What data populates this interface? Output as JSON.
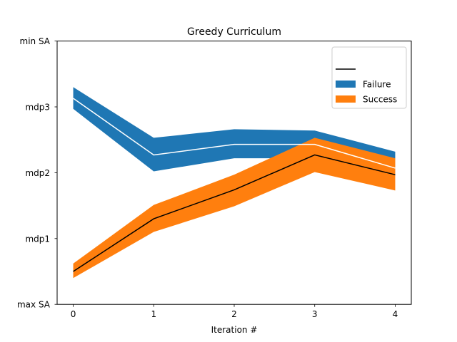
{
  "chart_data": {
    "type": "line",
    "title": "Greedy Curriculum",
    "xlabel": "Iteration #",
    "ylabel": "",
    "x": [
      0,
      1,
      2,
      3,
      4
    ],
    "xlim": [
      -0.2,
      4.2
    ],
    "ylim": [
      0,
      4
    ],
    "y_ticks": [
      {
        "value": 0,
        "label": "max SA"
      },
      {
        "value": 1,
        "label": "mdp1"
      },
      {
        "value": 2,
        "label": "mdp2"
      },
      {
        "value": 3,
        "label": "mdp3"
      },
      {
        "value": 4,
        "label": "min SA"
      }
    ],
    "grid": false,
    "legend_position": "top-right",
    "series": [
      {
        "name": "Failure",
        "color": "#1f77b4",
        "line_color": "#ffffff",
        "mean": [
          3.13,
          2.27,
          2.43,
          2.43,
          2.07
        ],
        "lower": [
          2.97,
          2.02,
          2.22,
          2.22,
          1.95
        ],
        "upper": [
          3.3,
          2.53,
          2.66,
          2.64,
          2.32
        ]
      },
      {
        "name": "Success",
        "color": "#ff7f0e",
        "line_color": "#000000",
        "mean": [
          0.5,
          1.3,
          1.74,
          2.27,
          1.97
        ],
        "lower": [
          0.4,
          1.1,
          1.49,
          2.01,
          1.73
        ],
        "upper": [
          0.62,
          1.51,
          1.97,
          2.53,
          2.22
        ]
      }
    ],
    "legend_line_label": ""
  }
}
